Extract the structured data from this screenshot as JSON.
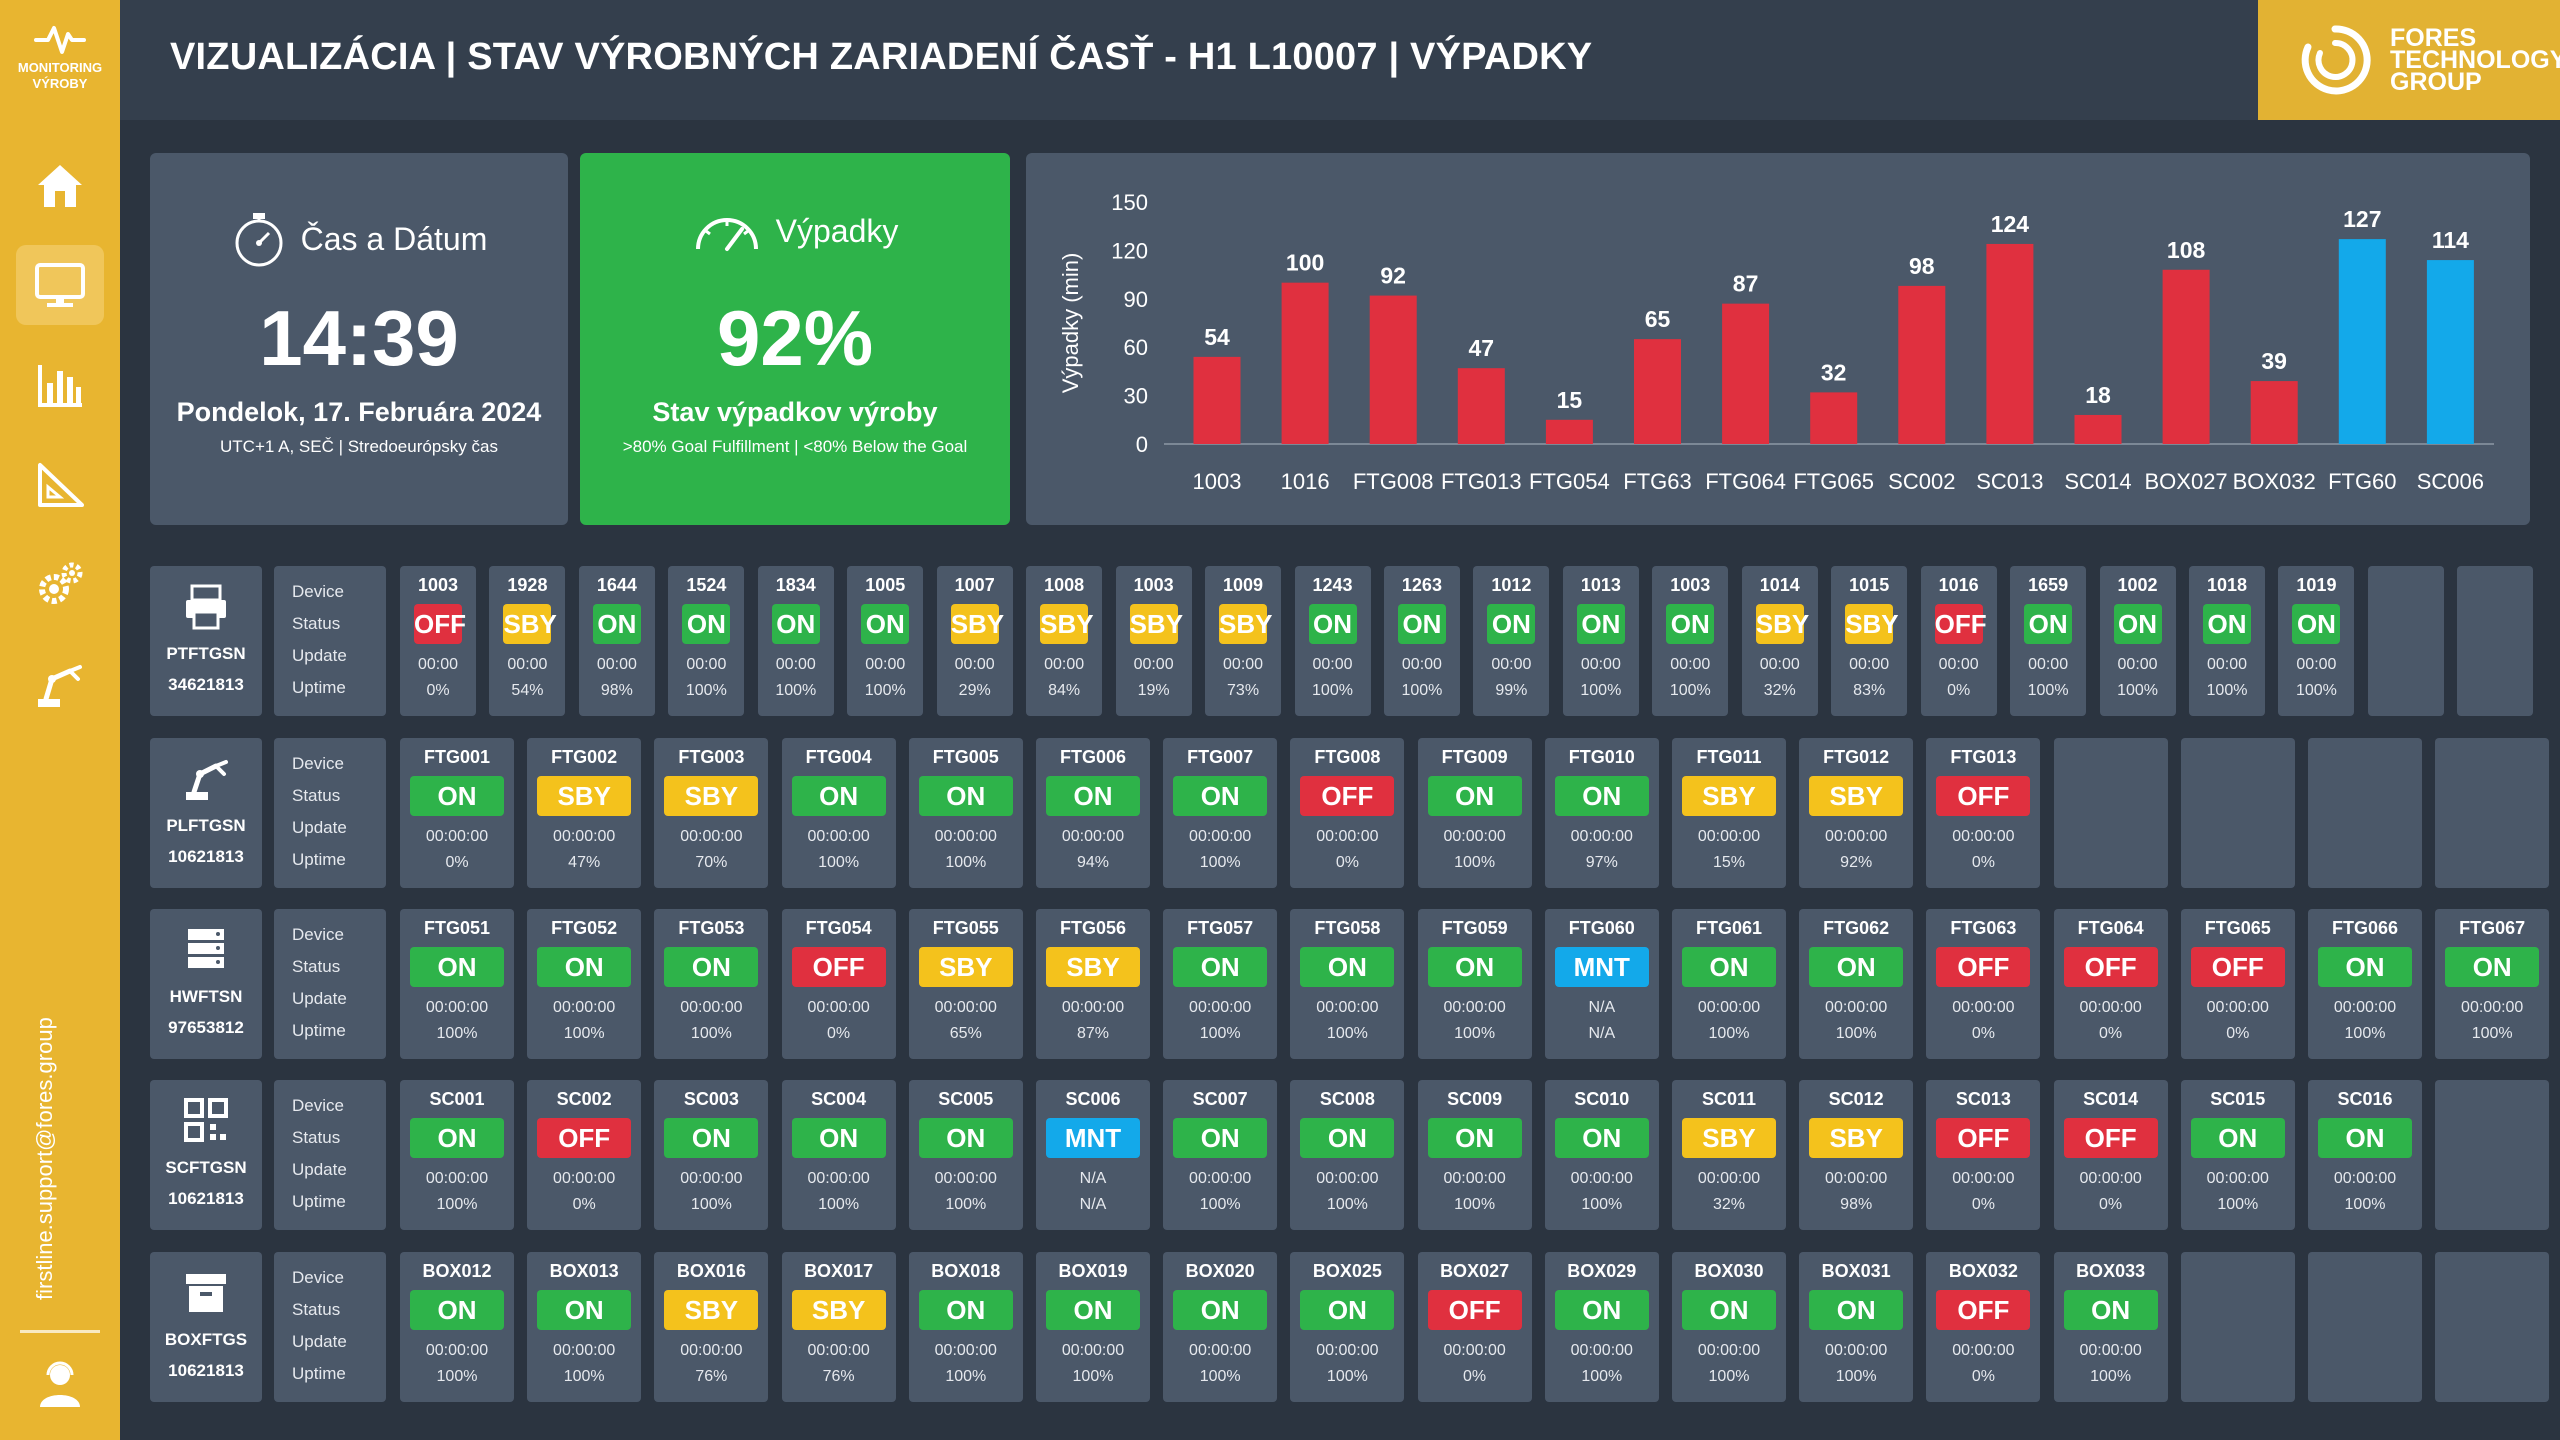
{
  "sidebar": {
    "logo_text_1": "MONITORING",
    "logo_text_2": "VÝROBY",
    "nav": [
      "home-icon",
      "monitor-icon",
      "bar-chart-icon",
      "ruler-icon",
      "gears-icon",
      "robot-arm-icon"
    ],
    "active": "monitor-icon",
    "support_email": "firstline.support@fores.group",
    "user_icon": "user-icon"
  },
  "header": {
    "title": "VIZUALIZÁCIA | STAV VÝROBNÝCH ZARIADENÍ ČASŤ - H1 L10007 | VÝPADKY",
    "brand_line1": "FORES",
    "brand_line2": "TECHNOLOGY",
    "brand_line3": "GROUP"
  },
  "time_card": {
    "label": "Čas a Dátum",
    "time": "14:39",
    "date": "Pondelok, 17. Februára 2024",
    "timezone": "UTC+1 A, SEČ | Stredoeurópsky čas"
  },
  "goal_card": {
    "label": "Výpadky",
    "value": "92%",
    "subtitle": "Stav výpadkov výroby",
    "note": ">80% Goal Fulfillment | <80% Below the Goal"
  },
  "chart_data": {
    "type": "bar",
    "ylabel": "Výpadky (min)",
    "ylim": [
      0,
      150
    ],
    "yticks": [
      0,
      30,
      60,
      90,
      120,
      150
    ],
    "categories": [
      "1003",
      "1016",
      "FTG008",
      "FTG013",
      "FTG054",
      "FTG63",
      "FTG064",
      "FTG065",
      "SC002",
      "SC013",
      "SC014",
      "BOX027",
      "BOX032",
      "FTG60",
      "SC006"
    ],
    "values": [
      54,
      100,
      92,
      47,
      15,
      65,
      87,
      32,
      98,
      124,
      18,
      108,
      39,
      127,
      114
    ],
    "colors": [
      "#e0303f",
      "#e0303f",
      "#e0303f",
      "#e0303f",
      "#e0303f",
      "#e0303f",
      "#e0303f",
      "#e0303f",
      "#e0303f",
      "#e0303f",
      "#e0303f",
      "#e0303f",
      "#e0303f",
      "#13a9ea",
      "#13a9ea"
    ],
    "grid": false
  },
  "row_labels": {
    "device": "Device",
    "status": "Status",
    "update": "Update",
    "uptime": "Uptime"
  },
  "colors": {
    "ON": "#2eb34a",
    "OFF": "#e0303f",
    "SBY": "#f4c21c",
    "MNT": "#13a9ea"
  },
  "groups": [
    {
      "name": "PTFTGSN",
      "id": "34621813",
      "icon": "printer-icon",
      "empty_tiles": 2,
      "devices": [
        {
          "name": "1003",
          "status": "OFF",
          "update": "00:00",
          "uptime": "0%"
        },
        {
          "name": "1928",
          "status": "SBY",
          "update": "00:00",
          "uptime": "54%"
        },
        {
          "name": "1644",
          "status": "ON",
          "update": "00:00",
          "uptime": "98%"
        },
        {
          "name": "1524",
          "status": "ON",
          "update": "00:00",
          "uptime": "100%"
        },
        {
          "name": "1834",
          "status": "ON",
          "update": "00:00",
          "uptime": "100%"
        },
        {
          "name": "1005",
          "status": "ON",
          "update": "00:00",
          "uptime": "100%"
        },
        {
          "name": "1007",
          "status": "SBY",
          "update": "00:00",
          "uptime": "29%"
        },
        {
          "name": "1008",
          "status": "SBY",
          "update": "00:00",
          "uptime": "84%"
        },
        {
          "name": "1003",
          "status": "SBY",
          "update": "00:00",
          "uptime": "19%"
        },
        {
          "name": "1009",
          "status": "SBY",
          "update": "00:00",
          "uptime": "73%"
        },
        {
          "name": "1243",
          "status": "ON",
          "update": "00:00",
          "uptime": "100%"
        },
        {
          "name": "1263",
          "status": "ON",
          "update": "00:00",
          "uptime": "100%"
        },
        {
          "name": "1012",
          "status": "ON",
          "update": "00:00",
          "uptime": "99%"
        },
        {
          "name": "1013",
          "status": "ON",
          "update": "00:00",
          "uptime": "100%"
        },
        {
          "name": "1003",
          "status": "ON",
          "update": "00:00",
          "uptime": "100%"
        },
        {
          "name": "1014",
          "status": "SBY",
          "update": "00:00",
          "uptime": "32%"
        },
        {
          "name": "1015",
          "status": "SBY",
          "update": "00:00",
          "uptime": "83%"
        },
        {
          "name": "1016",
          "status": "OFF",
          "update": "00:00",
          "uptime": "0%"
        },
        {
          "name": "1659",
          "status": "ON",
          "update": "00:00",
          "uptime": "100%"
        },
        {
          "name": "1002",
          "status": "ON",
          "update": "00:00",
          "uptime": "100%"
        },
        {
          "name": "1018",
          "status": "ON",
          "update": "00:00",
          "uptime": "100%"
        },
        {
          "name": "1019",
          "status": "ON",
          "update": "00:00",
          "uptime": "100%"
        }
      ]
    },
    {
      "name": "PLFTGSN",
      "id": "10621813",
      "icon": "robot-arm-icon",
      "empty_tiles": 4,
      "devices": [
        {
          "name": "FTG001",
          "status": "ON",
          "update": "00:00:00",
          "uptime": "0%"
        },
        {
          "name": "FTG002",
          "status": "SBY",
          "update": "00:00:00",
          "uptime": "47%"
        },
        {
          "name": "FTG003",
          "status": "SBY",
          "update": "00:00:00",
          "uptime": "70%"
        },
        {
          "name": "FTG004",
          "status": "ON",
          "update": "00:00:00",
          "uptime": "100%"
        },
        {
          "name": "FTG005",
          "status": "ON",
          "update": "00:00:00",
          "uptime": "100%"
        },
        {
          "name": "FTG006",
          "status": "ON",
          "update": "00:00:00",
          "uptime": "94%"
        },
        {
          "name": "FTG007",
          "status": "ON",
          "update": "00:00:00",
          "uptime": "100%"
        },
        {
          "name": "FTG008",
          "status": "OFF",
          "update": "00:00:00",
          "uptime": "0%"
        },
        {
          "name": "FTG009",
          "status": "ON",
          "update": "00:00:00",
          "uptime": "100%"
        },
        {
          "name": "FTG010",
          "status": "ON",
          "update": "00:00:00",
          "uptime": "97%"
        },
        {
          "name": "FTG011",
          "status": "SBY",
          "update": "00:00:00",
          "uptime": "15%"
        },
        {
          "name": "FTG012",
          "status": "SBY",
          "update": "00:00:00",
          "uptime": "92%"
        },
        {
          "name": "FTG013",
          "status": "OFF",
          "update": "00:00:00",
          "uptime": "0%"
        }
      ]
    },
    {
      "name": "HWFTSN",
      "id": "97653812",
      "icon": "server-icon",
      "empty_tiles": 0,
      "devices": [
        {
          "name": "FTG051",
          "status": "ON",
          "update": "00:00:00",
          "uptime": "100%"
        },
        {
          "name": "FTG052",
          "status": "ON",
          "update": "00:00:00",
          "uptime": "100%"
        },
        {
          "name": "FTG053",
          "status": "ON",
          "update": "00:00:00",
          "uptime": "100%"
        },
        {
          "name": "FTG054",
          "status": "OFF",
          "update": "00:00:00",
          "uptime": "0%"
        },
        {
          "name": "FTG055",
          "status": "SBY",
          "update": "00:00:00",
          "uptime": "65%"
        },
        {
          "name": "FTG056",
          "status": "SBY",
          "update": "00:00:00",
          "uptime": "87%"
        },
        {
          "name": "FTG057",
          "status": "ON",
          "update": "00:00:00",
          "uptime": "100%"
        },
        {
          "name": "FTG058",
          "status": "ON",
          "update": "00:00:00",
          "uptime": "100%"
        },
        {
          "name": "FTG059",
          "status": "ON",
          "update": "00:00:00",
          "uptime": "100%"
        },
        {
          "name": "FTG060",
          "status": "MNT",
          "update": "N/A",
          "uptime": "N/A"
        },
        {
          "name": "FTG061",
          "status": "ON",
          "update": "00:00:00",
          "uptime": "100%"
        },
        {
          "name": "FTG062",
          "status": "ON",
          "update": "00:00:00",
          "uptime": "100%"
        },
        {
          "name": "FTG063",
          "status": "OFF",
          "update": "00:00:00",
          "uptime": "0%"
        },
        {
          "name": "FTG064",
          "status": "OFF",
          "update": "00:00:00",
          "uptime": "0%"
        },
        {
          "name": "FTG065",
          "status": "OFF",
          "update": "00:00:00",
          "uptime": "0%"
        },
        {
          "name": "FTG066",
          "status": "ON",
          "update": "00:00:00",
          "uptime": "100%"
        },
        {
          "name": "FTG067",
          "status": "ON",
          "update": "00:00:00",
          "uptime": "100%"
        }
      ]
    },
    {
      "name": "SCFTGSN",
      "id": "10621813",
      "icon": "qr-code-icon",
      "empty_tiles": 1,
      "devices": [
        {
          "name": "SC001",
          "status": "ON",
          "update": "00:00:00",
          "uptime": "100%"
        },
        {
          "name": "SC002",
          "status": "OFF",
          "update": "00:00:00",
          "uptime": "0%"
        },
        {
          "name": "SC003",
          "status": "ON",
          "update": "00:00:00",
          "uptime": "100%"
        },
        {
          "name": "SC004",
          "status": "ON",
          "update": "00:00:00",
          "uptime": "100%"
        },
        {
          "name": "SC005",
          "status": "ON",
          "update": "00:00:00",
          "uptime": "100%"
        },
        {
          "name": "SC006",
          "status": "MNT",
          "update": "N/A",
          "uptime": "N/A"
        },
        {
          "name": "SC007",
          "status": "ON",
          "update": "00:00:00",
          "uptime": "100%"
        },
        {
          "name": "SC008",
          "status": "ON",
          "update": "00:00:00",
          "uptime": "100%"
        },
        {
          "name": "SC009",
          "status": "ON",
          "update": "00:00:00",
          "uptime": "100%"
        },
        {
          "name": "SC010",
          "status": "ON",
          "update": "00:00:00",
          "uptime": "100%"
        },
        {
          "name": "SC011",
          "status": "SBY",
          "update": "00:00:00",
          "uptime": "32%"
        },
        {
          "name": "SC012",
          "status": "SBY",
          "update": "00:00:00",
          "uptime": "98%"
        },
        {
          "name": "SC013",
          "status": "OFF",
          "update": "00:00:00",
          "uptime": "0%"
        },
        {
          "name": "SC014",
          "status": "OFF",
          "update": "00:00:00",
          "uptime": "0%"
        },
        {
          "name": "SC015",
          "status": "ON",
          "update": "00:00:00",
          "uptime": "100%"
        },
        {
          "name": "SC016",
          "status": "ON",
          "update": "00:00:00",
          "uptime": "100%"
        }
      ]
    },
    {
      "name": "BOXFTGS",
      "id": "10621813",
      "icon": "box-icon",
      "empty_tiles": 3,
      "devices": [
        {
          "name": "BOX012",
          "status": "ON",
          "update": "00:00:00",
          "uptime": "100%"
        },
        {
          "name": "BOX013",
          "status": "ON",
          "update": "00:00:00",
          "uptime": "100%"
        },
        {
          "name": "BOX016",
          "status": "SBY",
          "update": "00:00:00",
          "uptime": "76%"
        },
        {
          "name": "BOX017",
          "status": "SBY",
          "update": "00:00:00",
          "uptime": "76%"
        },
        {
          "name": "BOX018",
          "status": "ON",
          "update": "00:00:00",
          "uptime": "100%"
        },
        {
          "name": "BOX019",
          "status": "ON",
          "update": "00:00:00",
          "uptime": "100%"
        },
        {
          "name": "BOX020",
          "status": "ON",
          "update": "00:00:00",
          "uptime": "100%"
        },
        {
          "name": "BOX025",
          "status": "ON",
          "update": "00:00:00",
          "uptime": "100%"
        },
        {
          "name": "BOX027",
          "status": "OFF",
          "update": "00:00:00",
          "uptime": "0%"
        },
        {
          "name": "BOX029",
          "status": "ON",
          "update": "00:00:00",
          "uptime": "100%"
        },
        {
          "name": "BOX030",
          "status": "ON",
          "update": "00:00:00",
          "uptime": "100%"
        },
        {
          "name": "BOX031",
          "status": "ON",
          "update": "00:00:00",
          "uptime": "100%"
        },
        {
          "name": "BOX032",
          "status": "OFF",
          "update": "00:00:00",
          "uptime": "0%"
        },
        {
          "name": "BOX033",
          "status": "ON",
          "update": "00:00:00",
          "uptime": "100%"
        }
      ]
    }
  ]
}
